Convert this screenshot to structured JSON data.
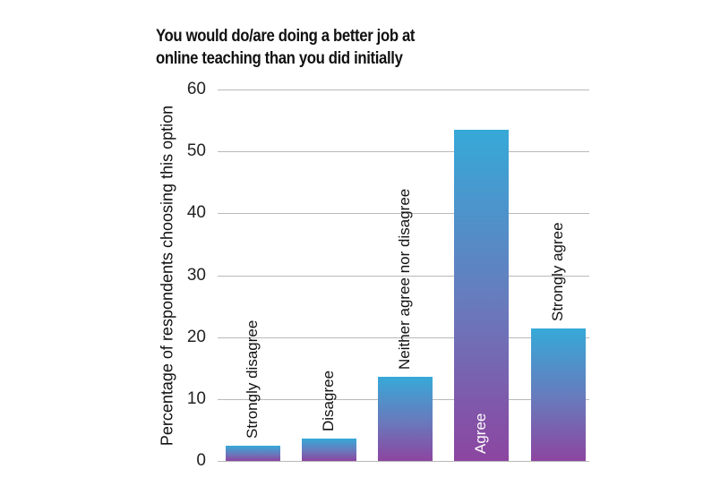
{
  "chart_data": {
    "type": "bar",
    "title": "You would do/are doing a better job at online teaching than you did initially",
    "title_lines": [
      "You would do/are doing a better job at",
      "online teaching than you did initially"
    ],
    "xlabel": "",
    "ylabel": "Percentage of respondents choosing this option",
    "ylim": [
      0,
      60
    ],
    "yticks": [
      0,
      10,
      20,
      30,
      40,
      50,
      60
    ],
    "grid": true,
    "legend": "none",
    "categories": [
      "Strongly disagree",
      "Disagree",
      "Neither agree nor disagree",
      "Agree",
      "Strongly agree"
    ],
    "values": [
      2.5,
      3.6,
      13.6,
      53.5,
      21.4
    ],
    "colors": {
      "bar_top": "#36a9d8",
      "bar_bottom": "#8c45a0",
      "grid": "#b9b9b9"
    }
  }
}
